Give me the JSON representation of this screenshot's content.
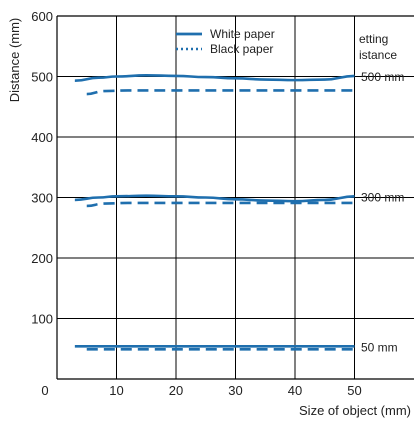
{
  "chart_data": {
    "type": "line",
    "xlabel": "Size of object (mm)",
    "ylabel": "Distance (mm)",
    "xlim": [
      0,
      60
    ],
    "ylim": [
      0,
      600
    ],
    "x_ticks": [
      "0",
      "10",
      "20",
      "30",
      "40",
      "50"
    ],
    "y_ticks": [
      "100",
      "200",
      "300",
      "400",
      "500",
      "600"
    ],
    "grid": true,
    "legend": {
      "placement": "top-center",
      "entries": [
        "White paper",
        "Black paper"
      ]
    },
    "side_title_lines": [
      "etting",
      "istance"
    ],
    "groups": [
      {
        "label": "500 mm",
        "series": [
          {
            "name": "White paper",
            "x": [
              3,
              7,
              10,
              15,
              20,
              25,
              30,
              35,
              40,
              45,
              50
            ],
            "y": [
              493,
              498,
              500,
              502,
              501,
              499,
              497,
              495,
              494,
              495,
              501
            ]
          },
          {
            "name": "Black paper",
            "x": [
              5,
              8,
              12,
              20,
              30,
              40,
              50
            ],
            "y": [
              471,
              476,
              477,
              477,
              477,
              477,
              477
            ]
          }
        ]
      },
      {
        "label": "300 mm",
        "series": [
          {
            "name": "White paper",
            "x": [
              3,
              7,
              10,
              15,
              20,
              25,
              30,
              35,
              40,
              45,
              50
            ],
            "y": [
              296,
              300,
              302,
              303,
              302,
              300,
              297,
              295,
              294,
              296,
              302
            ]
          },
          {
            "name": "Black paper",
            "x": [
              5,
              8,
              12,
              20,
              30,
              40,
              50
            ],
            "y": [
              286,
              290,
              291,
              291,
              291,
              291,
              291
            ]
          }
        ]
      },
      {
        "label": "50 mm",
        "series": [
          {
            "name": "White paper",
            "x": [
              3,
              50
            ],
            "y": [
              54,
              54
            ]
          },
          {
            "name": "Black paper",
            "x": [
              5,
              50
            ],
            "y": [
              49,
              49
            ]
          }
        ]
      }
    ],
    "colors": {
      "line": "#1f6fae",
      "grid": "#000000",
      "text": "#222222"
    }
  }
}
